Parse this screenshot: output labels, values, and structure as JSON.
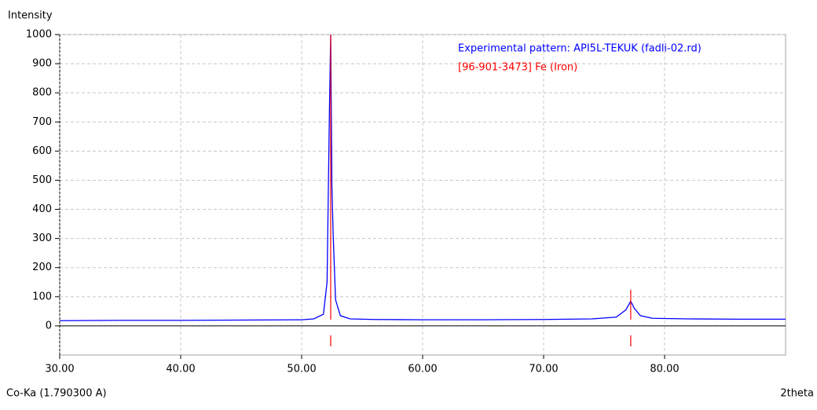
{
  "chart_data": {
    "type": "line",
    "y_axis_label": "Intensity",
    "x_axis_label": "2theta",
    "radiation_label": "Co-Ka (1.790300 A)",
    "xlim": [
      30,
      90
    ],
    "ylim": [
      -100,
      1000
    ],
    "xticks": [
      {
        "value": 30,
        "label": "30.00"
      },
      {
        "value": 40,
        "label": "40.00"
      },
      {
        "value": 50,
        "label": "50.00"
      },
      {
        "value": 60,
        "label": "60.00"
      },
      {
        "value": 70,
        "label": "70.00"
      },
      {
        "value": 80,
        "label": "80.00"
      }
    ],
    "yticks": [
      0,
      100,
      200,
      300,
      400,
      500,
      600,
      700,
      800,
      900,
      1000
    ],
    "grid": true,
    "series": [
      {
        "name": "Experimental pattern: API5L-TEKUK (fadli-02.rd)",
        "color": "#0000ff",
        "style": "line",
        "x": [
          30,
          35,
          40,
          45,
          50,
          51,
          51.8,
          52.1,
          52.3,
          52.4,
          52.5,
          52.6,
          52.8,
          53.2,
          54,
          56,
          60,
          65,
          70,
          74,
          76,
          76.8,
          77.2,
          77.5,
          78,
          79,
          82,
          86,
          90
        ],
        "values": [
          18,
          19,
          19,
          20,
          21,
          24,
          40,
          150,
          750,
          1000,
          480,
          320,
          90,
          35,
          24,
          22,
          21,
          21,
          22,
          24,
          30,
          55,
          85,
          60,
          35,
          26,
          24,
          23,
          23
        ]
      },
      {
        "name": "[96-901-3473] Fe  (Iron)",
        "color": "#ff0000",
        "style": "stick",
        "x": [
          52.4,
          77.2
        ],
        "values": [
          1000,
          124
        ]
      }
    ]
  }
}
